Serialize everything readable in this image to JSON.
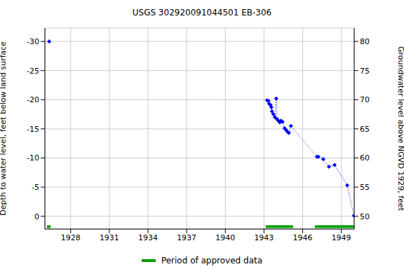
{
  "chart_data": {
    "type": "line",
    "title": "USGS 302920091044501 EB-306",
    "x_label": "",
    "y_label": "Depth to water level, feet below land surface",
    "y2_label": "Groundwater level above NGVD 1929, feet",
    "xlim": [
      1926,
      1950
    ],
    "xticks": [
      1928,
      1931,
      1934,
      1937,
      1940,
      1943,
      1946,
      1949
    ],
    "ylim": [
      -32.3,
      2.2
    ],
    "yticks": [
      -30,
      -25,
      -20,
      -15,
      -10,
      -5,
      0
    ],
    "y2lim": [
      47.8,
      82.3
    ],
    "y2ticks": [
      50,
      55,
      60,
      65,
      70,
      75,
      80
    ],
    "grid": true,
    "series": [
      {
        "type": "scatter",
        "color": "#0000ff",
        "marker": "diamond",
        "x": [
          1926.33
        ],
        "values": [
          -30
        ]
      },
      {
        "type": "line",
        "color": "#0000ff",
        "marker": "diamond",
        "line_style": "dotted",
        "x": [
          1943.24,
          1943.35,
          1943.4,
          1943.51,
          1943.57,
          1943.62,
          1943.73,
          1943.84,
          1943.95,
          1944.0,
          1944.11,
          1944.22,
          1944.33,
          1944.44,
          1944.6,
          1944.71,
          1944.82,
          1944.93,
          1945.09,
          1947.11,
          1947.22,
          1947.6,
          1948.04,
          1948.48,
          1949.46,
          1949.98
        ],
        "values": [
          -19.9,
          -19.8,
          -19.3,
          -19.1,
          -18.7,
          -18.0,
          -17.5,
          -17.0,
          -20.2,
          -16.7,
          -16.4,
          -16.1,
          -16.4,
          -16.2,
          -15.1,
          -14.8,
          -14.5,
          -14.3,
          -15.5,
          -10.2,
          -10.2,
          -9.8,
          -8.5,
          -8.8,
          -5.3,
          -0.1
        ]
      }
    ],
    "approved": {
      "label": "Period of approved data",
      "color": "#00a000",
      "periods": [
        [
          1926.16,
          1926.44
        ],
        [
          1943.13,
          1945.26
        ],
        [
          1946.95,
          1950.0
        ]
      ]
    }
  }
}
